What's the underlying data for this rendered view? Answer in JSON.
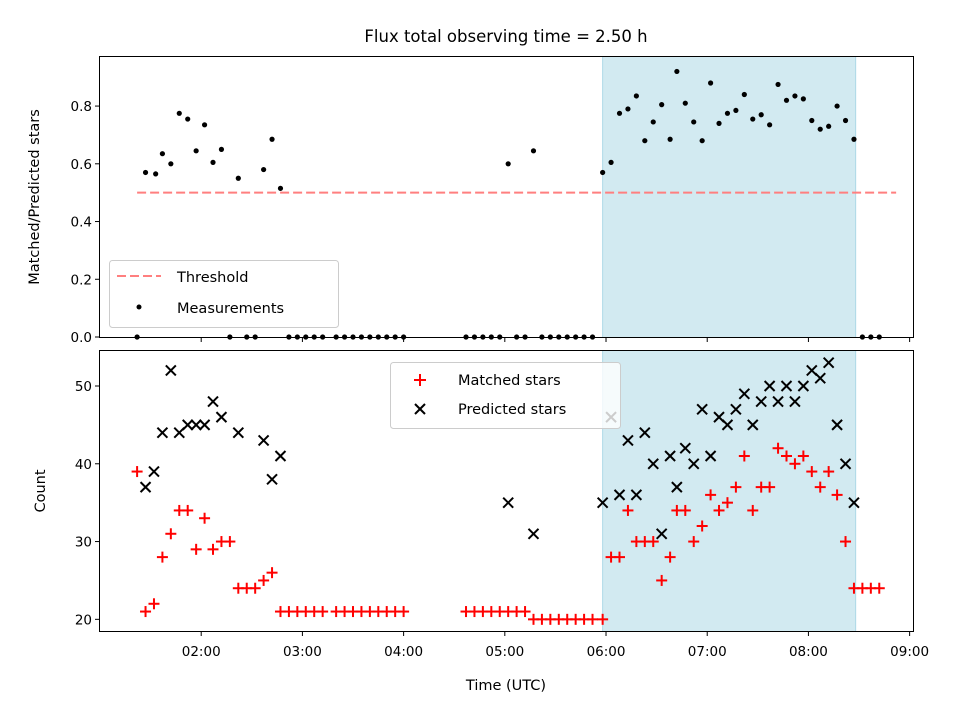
{
  "chart_data": {
    "title": "Flux total observing time = 2.50 h",
    "xlabel": "Time (UTC)",
    "x_ticks": [
      "02:00",
      "03:00",
      "04:00",
      "05:00",
      "06:00",
      "07:00",
      "08:00",
      "09:00"
    ],
    "x_domain": [
      "01:00",
      "09:02"
    ],
    "highlight_span": {
      "start": "05:58",
      "end": "08:28",
      "color": "#add8e6"
    },
    "panels": [
      {
        "type": "scatter",
        "ylabel": "Matched/Predicted stars",
        "ylim": [
          0,
          0.97
        ],
        "y_ticks": [
          0.0,
          0.2,
          0.4,
          0.6,
          0.8
        ],
        "legend": "lower-left",
        "threshold": {
          "name": "Threshold",
          "value": 0.5,
          "x_range": [
            "01:22",
            "08:52"
          ],
          "color": "#ff7f7f"
        },
        "series": [
          {
            "name": "Measurements",
            "marker": "dot",
            "color": "#000000",
            "points": [
              [
                "01:22",
                0.0
              ],
              [
                "01:27",
                0.57
              ],
              [
                "01:33",
                0.565
              ],
              [
                "01:37",
                0.635
              ],
              [
                "01:42",
                0.6
              ],
              [
                "01:47",
                0.775
              ],
              [
                "01:52",
                0.755
              ],
              [
                "01:57",
                0.645
              ],
              [
                "02:02",
                0.735
              ],
              [
                "02:07",
                0.605
              ],
              [
                "02:12",
                0.65
              ],
              [
                "02:17",
                0.0
              ],
              [
                "02:22",
                0.55
              ],
              [
                "02:27",
                0.0
              ],
              [
                "02:32",
                0.0
              ],
              [
                "02:37",
                0.58
              ],
              [
                "02:42",
                0.685
              ],
              [
                "02:47",
                0.515
              ],
              [
                "02:52",
                0.0
              ],
              [
                "02:57",
                0.0
              ],
              [
                "03:02",
                0.0
              ],
              [
                "03:07",
                0.0
              ],
              [
                "03:12",
                0.0
              ],
              [
                "03:20",
                0.0
              ],
              [
                "03:25",
                0.0
              ],
              [
                "03:30",
                0.0
              ],
              [
                "03:35",
                0.0
              ],
              [
                "03:40",
                0.0
              ],
              [
                "03:45",
                0.0
              ],
              [
                "03:50",
                0.0
              ],
              [
                "03:55",
                0.0
              ],
              [
                "04:00",
                0.0
              ],
              [
                "04:37",
                0.0
              ],
              [
                "04:42",
                0.0
              ],
              [
                "04:47",
                0.0
              ],
              [
                "04:52",
                0.0
              ],
              [
                "04:57",
                0.0
              ],
              [
                "05:02",
                0.6
              ],
              [
                "05:07",
                0.0
              ],
              [
                "05:12",
                0.0
              ],
              [
                "05:17",
                0.645
              ],
              [
                "05:22",
                0.0
              ],
              [
                "05:27",
                0.0
              ],
              [
                "05:32",
                0.0
              ],
              [
                "05:37",
                0.0
              ],
              [
                "05:42",
                0.0
              ],
              [
                "05:47",
                0.0
              ],
              [
                "05:52",
                0.0
              ],
              [
                "05:58",
                0.57
              ],
              [
                "06:03",
                0.605
              ],
              [
                "06:08",
                0.775
              ],
              [
                "06:13",
                0.79
              ],
              [
                "06:18",
                0.835
              ],
              [
                "06:23",
                0.68
              ],
              [
                "06:28",
                0.745
              ],
              [
                "06:33",
                0.805
              ],
              [
                "06:38",
                0.685
              ],
              [
                "06:42",
                0.92
              ],
              [
                "06:47",
                0.81
              ],
              [
                "06:52",
                0.745
              ],
              [
                "06:57",
                0.68
              ],
              [
                "07:02",
                0.88
              ],
              [
                "07:07",
                0.74
              ],
              [
                "07:12",
                0.775
              ],
              [
                "07:17",
                0.785
              ],
              [
                "07:22",
                0.84
              ],
              [
                "07:27",
                0.755
              ],
              [
                "07:32",
                0.77
              ],
              [
                "07:37",
                0.735
              ],
              [
                "07:42",
                0.875
              ],
              [
                "07:47",
                0.82
              ],
              [
                "07:52",
                0.835
              ],
              [
                "07:57",
                0.825
              ],
              [
                "08:02",
                0.75
              ],
              [
                "08:07",
                0.72
              ],
              [
                "08:12",
                0.73
              ],
              [
                "08:17",
                0.8
              ],
              [
                "08:22",
                0.75
              ],
              [
                "08:27",
                0.685
              ],
              [
                "08:32",
                0.0
              ],
              [
                "08:37",
                0.0
              ],
              [
                "08:42",
                0.0
              ]
            ]
          }
        ]
      },
      {
        "type": "scatter",
        "ylabel": "Count",
        "ylim": [
          18.5,
          54.5
        ],
        "y_ticks": [
          20,
          30,
          40,
          50
        ],
        "legend": "upper-center",
        "series": [
          {
            "name": "Matched stars",
            "marker": "plus",
            "color": "#ff0000",
            "points": [
              [
                "01:22",
                39
              ],
              [
                "01:27",
                21
              ],
              [
                "01:32",
                22
              ],
              [
                "01:37",
                28
              ],
              [
                "01:42",
                31
              ],
              [
                "01:47",
                34
              ],
              [
                "01:52",
                34
              ],
              [
                "01:57",
                29
              ],
              [
                "02:02",
                33
              ],
              [
                "02:07",
                29
              ],
              [
                "02:12",
                30
              ],
              [
                "02:17",
                30
              ],
              [
                "02:22",
                24
              ],
              [
                "02:27",
                24
              ],
              [
                "02:32",
                24
              ],
              [
                "02:37",
                25
              ],
              [
                "02:42",
                26
              ],
              [
                "02:47",
                21
              ],
              [
                "02:52",
                21
              ],
              [
                "02:57",
                21
              ],
              [
                "03:02",
                21
              ],
              [
                "03:07",
                21
              ],
              [
                "03:12",
                21
              ],
              [
                "03:20",
                21
              ],
              [
                "03:25",
                21
              ],
              [
                "03:30",
                21
              ],
              [
                "03:35",
                21
              ],
              [
                "03:40",
                21
              ],
              [
                "03:45",
                21
              ],
              [
                "03:50",
                21
              ],
              [
                "03:55",
                21
              ],
              [
                "04:00",
                21
              ],
              [
                "04:37",
                21
              ],
              [
                "04:42",
                21
              ],
              [
                "04:47",
                21
              ],
              [
                "04:52",
                21
              ],
              [
                "04:57",
                21
              ],
              [
                "05:02",
                21
              ],
              [
                "05:07",
                21
              ],
              [
                "05:12",
                21
              ],
              [
                "05:17",
                20
              ],
              [
                "05:22",
                20
              ],
              [
                "05:27",
                20
              ],
              [
                "05:32",
                20
              ],
              [
                "05:37",
                20
              ],
              [
                "05:42",
                20
              ],
              [
                "05:47",
                20
              ],
              [
                "05:52",
                20
              ],
              [
                "05:58",
                20
              ],
              [
                "06:03",
                28
              ],
              [
                "06:08",
                28
              ],
              [
                "06:13",
                34
              ],
              [
                "06:18",
                30
              ],
              [
                "06:23",
                30
              ],
              [
                "06:28",
                30
              ],
              [
                "06:33",
                25
              ],
              [
                "06:38",
                28
              ],
              [
                "06:42",
                34
              ],
              [
                "06:47",
                34
              ],
              [
                "06:52",
                30
              ],
              [
                "06:57",
                32
              ],
              [
                "07:02",
                36
              ],
              [
                "07:07",
                34
              ],
              [
                "07:12",
                35
              ],
              [
                "07:17",
                37
              ],
              [
                "07:22",
                41
              ],
              [
                "07:27",
                34
              ],
              [
                "07:32",
                37
              ],
              [
                "07:37",
                37
              ],
              [
                "07:42",
                42
              ],
              [
                "07:47",
                41
              ],
              [
                "07:52",
                40
              ],
              [
                "07:57",
                41
              ],
              [
                "08:02",
                39
              ],
              [
                "08:07",
                37
              ],
              [
                "08:12",
                39
              ],
              [
                "08:17",
                36
              ],
              [
                "08:22",
                30
              ],
              [
                "08:27",
                24
              ],
              [
                "08:32",
                24
              ],
              [
                "08:37",
                24
              ],
              [
                "08:42",
                24
              ]
            ]
          },
          {
            "name": "Predicted stars",
            "marker": "x",
            "color": "#000000",
            "points": [
              [
                "01:27",
                37
              ],
              [
                "01:32",
                39
              ],
              [
                "01:37",
                44
              ],
              [
                "01:42",
                52
              ],
              [
                "01:47",
                44
              ],
              [
                "01:52",
                45
              ],
              [
                "01:57",
                45
              ],
              [
                "02:02",
                45
              ],
              [
                "02:07",
                48
              ],
              [
                "02:12",
                46
              ],
              [
                "02:22",
                44
              ],
              [
                "02:37",
                43
              ],
              [
                "02:42",
                38
              ],
              [
                "02:47",
                41
              ],
              [
                "05:02",
                35
              ],
              [
                "05:17",
                31
              ],
              [
                "05:58",
                35
              ],
              [
                "06:03",
                46
              ],
              [
                "06:08",
                36
              ],
              [
                "06:13",
                43
              ],
              [
                "06:18",
                36
              ],
              [
                "06:23",
                44
              ],
              [
                "06:28",
                40
              ],
              [
                "06:33",
                31
              ],
              [
                "06:38",
                41
              ],
              [
                "06:42",
                37
              ],
              [
                "06:47",
                42
              ],
              [
                "06:52",
                40
              ],
              [
                "06:57",
                47
              ],
              [
                "07:02",
                41
              ],
              [
                "07:07",
                46
              ],
              [
                "07:12",
                45
              ],
              [
                "07:17",
                47
              ],
              [
                "07:22",
                49
              ],
              [
                "07:27",
                45
              ],
              [
                "07:32",
                48
              ],
              [
                "07:37",
                50
              ],
              [
                "07:42",
                48
              ],
              [
                "07:47",
                50
              ],
              [
                "07:52",
                48
              ],
              [
                "07:57",
                50
              ],
              [
                "08:02",
                52
              ],
              [
                "08:07",
                51
              ],
              [
                "08:12",
                53
              ],
              [
                "08:17",
                45
              ],
              [
                "08:22",
                40
              ],
              [
                "08:27",
                35
              ]
            ]
          }
        ]
      }
    ]
  }
}
